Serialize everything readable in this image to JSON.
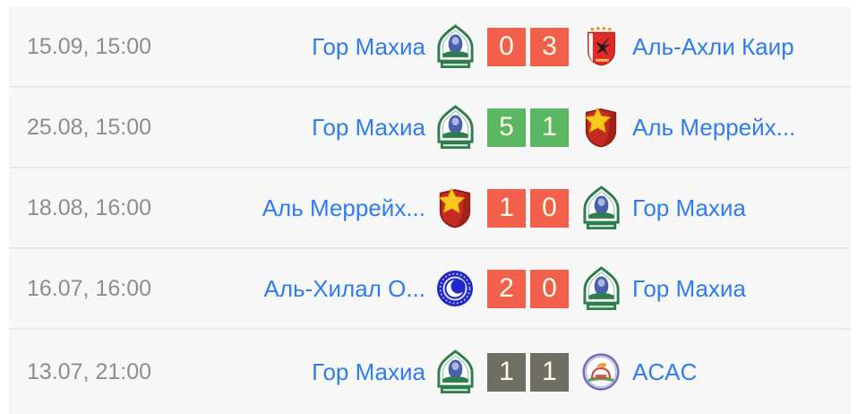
{
  "colors": {
    "loss_red": "#f2604b",
    "win_green": "#5cb763",
    "draw_gray": "#6e6e64",
    "link_blue": "#2e7cf0",
    "date_gray": "#8d8d8d",
    "row_background": "#f7f7f7",
    "separator": "#e8e8e8"
  },
  "matches": [
    {
      "date": "15.09, 15:00",
      "home": "Гор Махиа",
      "home_logo": "gor-mahia",
      "score_home": "0",
      "score_away": "3",
      "result_color_key": "loss_red",
      "away": "Аль-Ахли Каир",
      "away_logo": "al-ahly"
    },
    {
      "date": "25.08, 15:00",
      "home": "Гор Махиа",
      "home_logo": "gor-mahia",
      "score_home": "5",
      "score_away": "1",
      "result_color_key": "win_green",
      "away": "Аль Меррейх...",
      "away_logo": "al-merrikh"
    },
    {
      "date": "18.08, 16:00",
      "home": "Аль Меррейх...",
      "home_logo": "al-merrikh",
      "score_home": "1",
      "score_away": "0",
      "result_color_key": "loss_red",
      "away": "Гор Махиа",
      "away_logo": "gor-mahia"
    },
    {
      "date": "16.07, 16:00",
      "home": "Аль-Хилал О...",
      "home_logo": "al-hilal",
      "score_home": "2",
      "score_away": "0",
      "result_color_key": "loss_red",
      "away": "Гор Махиа",
      "away_logo": "gor-mahia"
    },
    {
      "date": "13.07, 21:00",
      "home": "Гор Махиа",
      "home_logo": "gor-mahia",
      "score_home": "1",
      "score_away": "1",
      "result_color_key": "draw_gray",
      "away": "ACAC",
      "away_logo": "acac"
    }
  ]
}
